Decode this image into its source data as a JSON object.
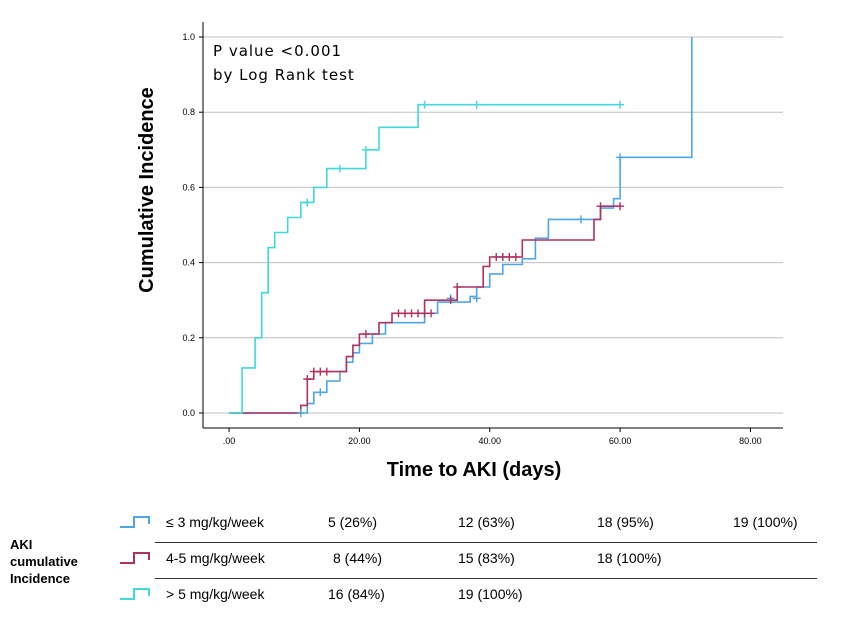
{
  "chart_data": {
    "type": "line",
    "step": true,
    "xlabel": "Time to AKI (days)",
    "ylabel": "Cumulative Incidence",
    "xlim": [
      -4,
      85
    ],
    "ylim": [
      -0.04,
      1.04
    ],
    "xticks": [
      0,
      20,
      40,
      60,
      80
    ],
    "xtick_labels": [
      ".00",
      "20.00",
      "40.00",
      "60.00",
      "80.00"
    ],
    "yticks": [
      0,
      0.2,
      0.4,
      0.6,
      0.8,
      1.0
    ],
    "ytick_labels": [
      "0.0",
      "0.2",
      "0.4",
      "0.6",
      "0.8",
      "1.0"
    ],
    "grid": "horizontal",
    "annotation": [
      "P value <0.001",
      "by Log Rank test"
    ],
    "series": [
      {
        "name": "≤ 3 mg/kg/week",
        "color": "#4da6e8",
        "points": [
          [
            0,
            0
          ],
          [
            12,
            0
          ],
          [
            12,
            0.025
          ],
          [
            13,
            0.025
          ],
          [
            13,
            0.055
          ],
          [
            15,
            0.055
          ],
          [
            15,
            0.085
          ],
          [
            17,
            0.085
          ],
          [
            17,
            0.11
          ],
          [
            18,
            0.11
          ],
          [
            18,
            0.135
          ],
          [
            19,
            0.135
          ],
          [
            19,
            0.16
          ],
          [
            20,
            0.16
          ],
          [
            20,
            0.185
          ],
          [
            22,
            0.185
          ],
          [
            22,
            0.21
          ],
          [
            24,
            0.21
          ],
          [
            24,
            0.24
          ],
          [
            30,
            0.24
          ],
          [
            30,
            0.265
          ],
          [
            32,
            0.265
          ],
          [
            32,
            0.295
          ],
          [
            37,
            0.295
          ],
          [
            37,
            0.31
          ],
          [
            38,
            0.31
          ],
          [
            38,
            0.335
          ],
          [
            40,
            0.335
          ],
          [
            40,
            0.37
          ],
          [
            42,
            0.37
          ],
          [
            42,
            0.395
          ],
          [
            45,
            0.395
          ],
          [
            45,
            0.41
          ],
          [
            47,
            0.41
          ],
          [
            47,
            0.465
          ],
          [
            49,
            0.465
          ],
          [
            49,
            0.515
          ],
          [
            57,
            0.515
          ],
          [
            57,
            0.545
          ],
          [
            59,
            0.545
          ],
          [
            59,
            0.57
          ],
          [
            60,
            0.57
          ],
          [
            60,
            0.68
          ],
          [
            71,
            0.68
          ],
          [
            71,
            1.0
          ]
        ],
        "censored": [
          [
            11,
            0
          ],
          [
            14,
            0.055
          ],
          [
            34,
            0.305
          ],
          [
            38,
            0.305
          ],
          [
            42,
            0.415
          ],
          [
            54,
            0.515
          ],
          [
            60,
            0.68
          ]
        ]
      },
      {
        "name": "4-5 mg/kg/week",
        "color": "#b03060",
        "points": [
          [
            0,
            0
          ],
          [
            11,
            0
          ],
          [
            11,
            0.02
          ],
          [
            12,
            0.02
          ],
          [
            12,
            0.09
          ],
          [
            13,
            0.09
          ],
          [
            13,
            0.11
          ],
          [
            18,
            0.11
          ],
          [
            18,
            0.15
          ],
          [
            19,
            0.15
          ],
          [
            19,
            0.18
          ],
          [
            20,
            0.18
          ],
          [
            20,
            0.21
          ],
          [
            23,
            0.21
          ],
          [
            23,
            0.24
          ],
          [
            25,
            0.24
          ],
          [
            25,
            0.265
          ],
          [
            30,
            0.265
          ],
          [
            30,
            0.3
          ],
          [
            35,
            0.3
          ],
          [
            35,
            0.335
          ],
          [
            39,
            0.335
          ],
          [
            39,
            0.39
          ],
          [
            40,
            0.39
          ],
          [
            40,
            0.415
          ],
          [
            45,
            0.415
          ],
          [
            45,
            0.46
          ],
          [
            56,
            0.46
          ],
          [
            56,
            0.515
          ],
          [
            57,
            0.515
          ],
          [
            57,
            0.55
          ],
          [
            60,
            0.55
          ]
        ],
        "censored": [
          [
            12,
            0.09
          ],
          [
            13,
            0.11
          ],
          [
            14,
            0.11
          ],
          [
            15,
            0.11
          ],
          [
            21,
            0.21
          ],
          [
            26,
            0.265
          ],
          [
            27,
            0.265
          ],
          [
            28,
            0.265
          ],
          [
            29,
            0.265
          ],
          [
            30,
            0.265
          ],
          [
            31,
            0.265
          ],
          [
            34,
            0.3
          ],
          [
            35,
            0.335
          ],
          [
            41,
            0.415
          ],
          [
            42,
            0.415
          ],
          [
            43,
            0.415
          ],
          [
            44,
            0.415
          ],
          [
            57,
            0.55
          ],
          [
            60,
            0.55
          ]
        ]
      },
      {
        "name": "> 5 mg/kg/week",
        "color": "#40d8d8",
        "points": [
          [
            0,
            0
          ],
          [
            2,
            0
          ],
          [
            2,
            0.12
          ],
          [
            4,
            0.12
          ],
          [
            4,
            0.2
          ],
          [
            5,
            0.2
          ],
          [
            5,
            0.32
          ],
          [
            6,
            0.32
          ],
          [
            6,
            0.44
          ],
          [
            7,
            0.44
          ],
          [
            7,
            0.48
          ],
          [
            9,
            0.48
          ],
          [
            9,
            0.52
          ],
          [
            11,
            0.52
          ],
          [
            11,
            0.56
          ],
          [
            13,
            0.56
          ],
          [
            13,
            0.6
          ],
          [
            15,
            0.6
          ],
          [
            15,
            0.65
          ],
          [
            21,
            0.65
          ],
          [
            21,
            0.7
          ],
          [
            23,
            0.7
          ],
          [
            23,
            0.76
          ],
          [
            29,
            0.76
          ],
          [
            29,
            0.82
          ],
          [
            60,
            0.82
          ]
        ],
        "censored": [
          [
            12,
            0.56
          ],
          [
            17,
            0.65
          ],
          [
            21,
            0.7
          ],
          [
            30,
            0.82
          ],
          [
            38,
            0.82
          ],
          [
            60,
            0.82
          ]
        ]
      }
    ]
  },
  "risk_table": {
    "heading": [
      "AKI",
      "cumulative",
      "Incidence"
    ],
    "rows": [
      {
        "label": "≤ 3 mg/kg/week",
        "color": "#4da6e8",
        "cells": [
          "5 (26%)",
          "12 (63%)",
          "18 (95%)",
          "19 (100%)"
        ]
      },
      {
        "label": "4-5 mg/kg/week",
        "color": "#b03060",
        "cells": [
          "8 (44%)",
          "15 (83%)",
          "18 (100%)"
        ]
      },
      {
        "label": "> 5 mg/kg/week",
        "color": "#40d8d8",
        "cells": [
          "16 (84%)",
          "19 (100%)"
        ]
      }
    ]
  }
}
